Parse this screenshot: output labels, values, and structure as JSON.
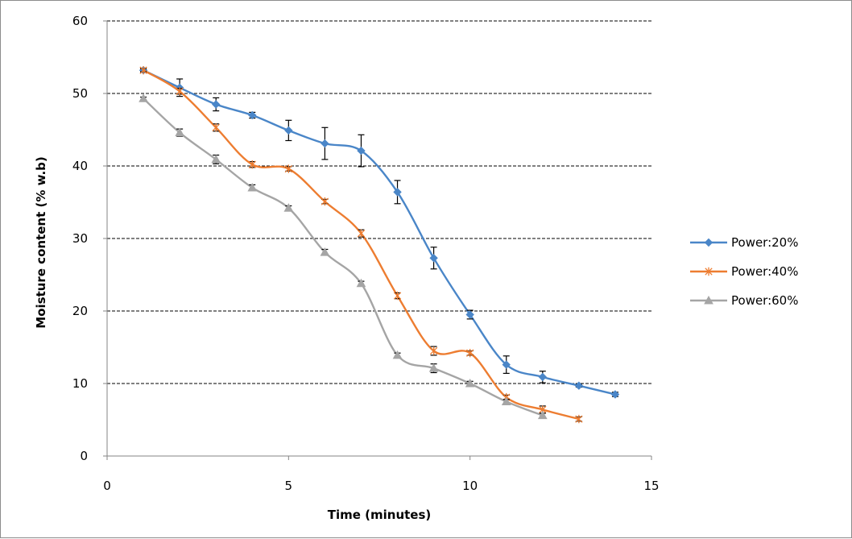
{
  "chart_data": {
    "type": "line",
    "title": "",
    "xlabel": "Time (minutes)",
    "ylabel": "Moisture content (% w.b)",
    "xlim": [
      0,
      15
    ],
    "ylim": [
      0,
      60
    ],
    "xticks": [
      0,
      5,
      10,
      15
    ],
    "yticks": [
      0,
      10,
      20,
      30,
      40,
      50,
      60
    ],
    "grid": "horizontal dashed",
    "legend_position": "right",
    "series": [
      {
        "name": "Power:20%",
        "color": "#4a86c8",
        "marker": "diamond",
        "x": [
          1,
          2,
          3,
          4,
          5,
          6,
          7,
          8,
          9,
          10,
          11,
          12,
          13,
          14
        ],
        "y": [
          53.2,
          50.8,
          48.5,
          47.0,
          44.9,
          43.1,
          42.1,
          36.4,
          27.3,
          19.5,
          12.6,
          10.9,
          9.7,
          8.5
        ],
        "err": [
          0.3,
          1.2,
          0.9,
          0.4,
          1.4,
          2.2,
          2.2,
          1.6,
          1.5,
          0.6,
          1.2,
          0.8,
          0.2,
          0.3
        ]
      },
      {
        "name": "Power:40%",
        "color": "#ed7d31",
        "marker": "star",
        "x": [
          1,
          2,
          3,
          4,
          5,
          6,
          7,
          8,
          9,
          10,
          11,
          12,
          13
        ],
        "y": [
          53.2,
          50.3,
          45.3,
          40.2,
          39.6,
          35.1,
          30.7,
          22.1,
          14.5,
          14.2,
          8.1,
          6.4,
          5.1
        ],
        "err": [
          0.2,
          0.4,
          0.5,
          0.4,
          0.3,
          0.3,
          0.5,
          0.4,
          0.6,
          0.3,
          0.3,
          0.5,
          0.3
        ]
      },
      {
        "name": "Power:60%",
        "color": "#a5a5a5",
        "marker": "triangle",
        "x": [
          1,
          2,
          3,
          4,
          5,
          6,
          7,
          8,
          9,
          10,
          11,
          12
        ],
        "y": [
          49.3,
          44.6,
          40.9,
          37.0,
          34.2,
          28.1,
          23.8,
          13.9,
          12.1,
          10.0,
          7.5,
          5.6
        ],
        "err": [
          0.2,
          0.5,
          0.6,
          0.4,
          0.3,
          0.4,
          0.3,
          0.3,
          0.6,
          0.3,
          0.3,
          0.3
        ]
      }
    ]
  }
}
